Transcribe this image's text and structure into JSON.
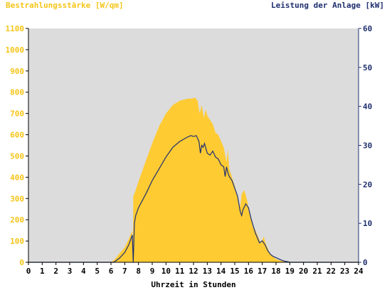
{
  "chart_data": {
    "type": "area",
    "title_left": "Bestrahlungsstärke [W/qm]",
    "title_right": "Leistung der Anlage [kW]",
    "xlabel": "Uhrzeit in Stunden",
    "xlim": [
      0,
      24
    ],
    "x_ticks": [
      0,
      1,
      2,
      3,
      4,
      5,
      6,
      7,
      8,
      9,
      10,
      11,
      12,
      13,
      14,
      15,
      16,
      17,
      18,
      19,
      20,
      21,
      22,
      23,
      24
    ],
    "y_left": {
      "range": [
        0,
        1100
      ],
      "ticks": [
        0,
        100,
        200,
        300,
        400,
        500,
        600,
        700,
        800,
        900,
        1000,
        1100
      ]
    },
    "y_right": {
      "range": [
        0,
        60
      ],
      "ticks": [
        0,
        10,
        20,
        30,
        40,
        50,
        60
      ]
    },
    "grid": false,
    "colors": {
      "plot_bg": "#dcdcdc",
      "irradiance": "#ffcb33",
      "power": "#1f2f6e",
      "left_axis_text": "#f5c518",
      "right_axis_text": "#1f2f6e"
    },
    "series": [
      {
        "name": "Bestrahlungsstärke [W/qm]",
        "axis": "left",
        "style": "area",
        "x": [
          0,
          6.0,
          6.3,
          6.6,
          7.0,
          7.3,
          7.55,
          7.6,
          7.62,
          7.75,
          8.0,
          8.5,
          9.0,
          9.5,
          10.0,
          10.5,
          11.0,
          11.3,
          11.6,
          11.9,
          12.1,
          12.3,
          12.45,
          12.6,
          12.75,
          12.9,
          13.0,
          13.2,
          13.4,
          13.6,
          13.8,
          14.0,
          14.2,
          14.4,
          14.5,
          14.6,
          14.8,
          15.0,
          15.2,
          15.4,
          15.5,
          15.7,
          15.9,
          16.1,
          16.3,
          16.5,
          16.7,
          16.9,
          17.1,
          17.3,
          17.5,
          17.7,
          17.9,
          18.1,
          18.3,
          18.5,
          18.7,
          18.9,
          19.0,
          24
        ],
        "y": [
          0,
          0,
          15,
          40,
          70,
          110,
          150,
          0,
          310,
          330,
          380,
          470,
          560,
          640,
          700,
          740,
          760,
          765,
          770,
          770,
          775,
          760,
          700,
          740,
          680,
          720,
          690,
          670,
          650,
          610,
          600,
          570,
          540,
          470,
          530,
          440,
          400,
          360,
          300,
          260,
          320,
          340,
          290,
          230,
          170,
          150,
          120,
          90,
          120,
          80,
          50,
          30,
          20,
          12,
          8,
          5,
          3,
          1,
          0,
          0
        ]
      },
      {
        "name": "Leistung der Anlage [kW]",
        "axis": "right",
        "style": "line",
        "x": [
          0,
          6.2,
          6.6,
          7.0,
          7.3,
          7.55,
          7.62,
          7.7,
          7.8,
          8.0,
          8.3,
          8.6,
          9.0,
          9.5,
          10.0,
          10.5,
          11.0,
          11.5,
          11.8,
          12.0,
          12.2,
          12.4,
          12.5,
          12.6,
          12.7,
          12.8,
          13.0,
          13.2,
          13.4,
          13.6,
          13.8,
          14.0,
          14.2,
          14.3,
          14.4,
          14.5,
          14.6,
          14.8,
          15.0,
          15.2,
          15.4,
          15.5,
          15.6,
          15.8,
          16.0,
          16.2,
          16.5,
          16.8,
          17.0,
          17.2,
          17.4,
          17.6,
          17.8,
          18.0,
          18.3,
          18.6,
          18.9,
          19.0,
          24
        ],
        "y": [
          0,
          0,
          1,
          2.5,
          4.5,
          7,
          0,
          10,
          12,
          14,
          16,
          18,
          21,
          24,
          27,
          29.5,
          31,
          32,
          32.5,
          32.3,
          32.5,
          31,
          28,
          30,
          29.5,
          30.5,
          28,
          27.5,
          28.5,
          27,
          26.5,
          25,
          24.5,
          22,
          24.5,
          23,
          22,
          21,
          19,
          17,
          13,
          12,
          13.5,
          15,
          14,
          11,
          7.5,
          5,
          5.5,
          4.5,
          3,
          2,
          1.5,
          1.2,
          0.7,
          0.3,
          0.1,
          0,
          0
        ]
      }
    ]
  }
}
